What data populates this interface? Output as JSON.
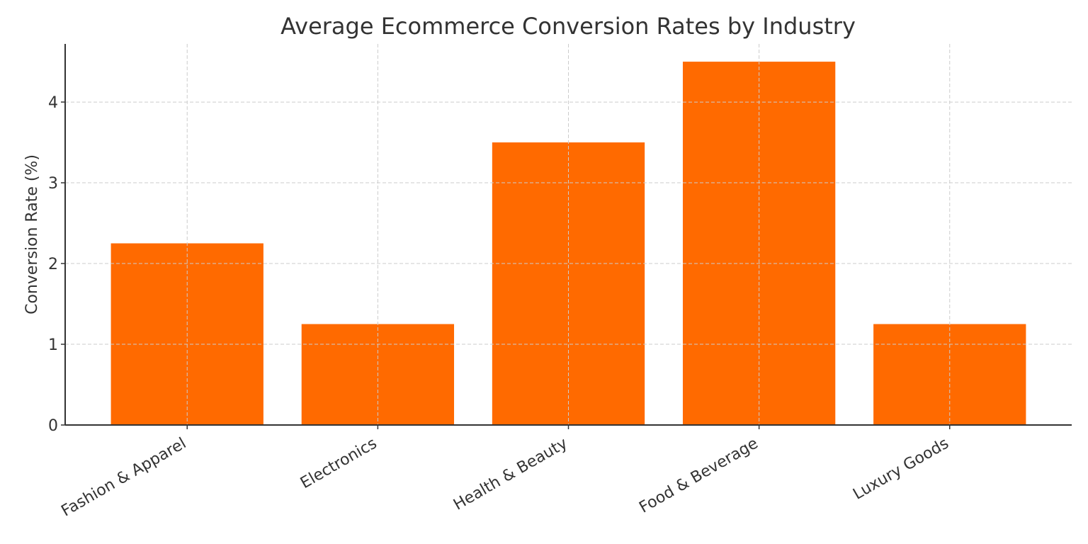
{
  "chart_data": {
    "type": "bar",
    "title": "Average Ecommerce Conversion Rates by Industry",
    "y_label": "Conversion Rate (%)",
    "categories": [
      "Fashion & Apparel",
      "Electronics",
      "Health & Beauty",
      "Food & Beverage",
      "Luxury Goods"
    ],
    "values": [
      2.25,
      1.25,
      3.5,
      4.5,
      1.25
    ],
    "color": "#ff6a00",
    "ylim": [
      0,
      4.72
    ],
    "yticks": [
      0,
      1,
      2,
      3,
      4
    ],
    "grid": true
  }
}
